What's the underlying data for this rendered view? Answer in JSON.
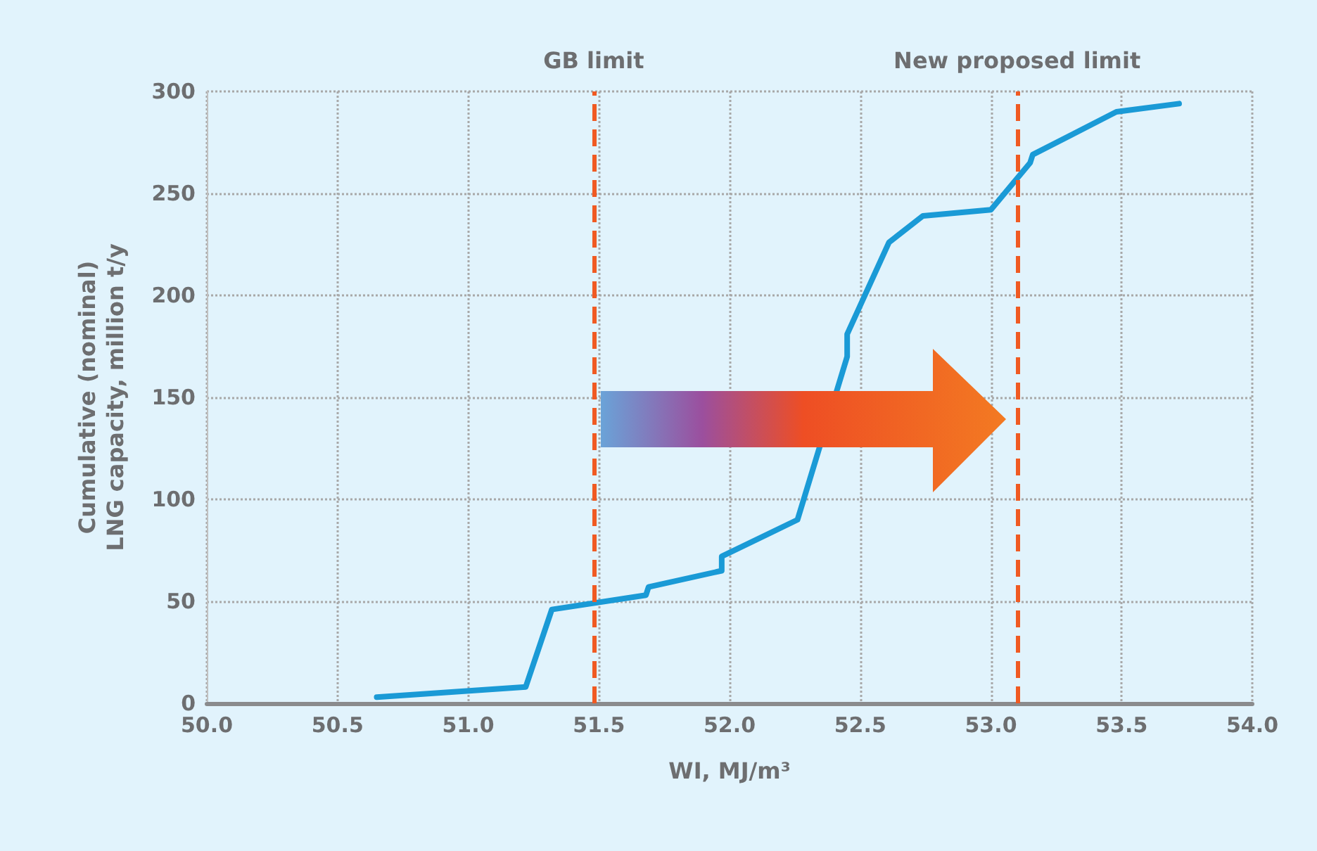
{
  "chart_data": {
    "type": "line",
    "xlabel": "WI, MJ/m³",
    "ylabel": "Cumulative (nominal)\nLNG capacity, million t/y",
    "series": [
      {
        "color": "#1a9ad6",
        "x": [
          50.65,
          51.22,
          51.32,
          51.68,
          51.69,
          51.97,
          51.97,
          52.26,
          52.45,
          52.45,
          52.61,
          52.74,
          53.0,
          53.15,
          53.16,
          53.48,
          53.72
        ],
        "values": [
          3,
          8,
          46,
          53,
          57,
          65,
          72,
          90,
          170,
          181,
          226,
          239,
          242,
          265,
          269,
          290,
          294
        ]
      }
    ],
    "xlim": [
      50,
      54
    ],
    "xticks": [
      {
        "value": 50,
        "label": "50.0"
      },
      {
        "value": 50.5,
        "label": "50.5"
      },
      {
        "value": 51,
        "label": "51.0"
      },
      {
        "value": 51.5,
        "label": "51.5"
      },
      {
        "value": 52,
        "label": "52.0"
      },
      {
        "value": 52.5,
        "label": "52.5"
      },
      {
        "value": 53,
        "label": "53.0"
      },
      {
        "value": 53.5,
        "label": "53.5"
      },
      {
        "value": 54,
        "label": "54.0"
      }
    ],
    "ylim": [
      0,
      300
    ],
    "yticks": [
      0,
      50,
      100,
      150,
      200,
      250,
      300
    ],
    "ref_lines": [
      {
        "axis": "x",
        "value": 51.48,
        "label": "GB limit",
        "color": "#f05a22",
        "line_style": "dashed"
      },
      {
        "axis": "x",
        "value": 53.1,
        "label": "New proposed limit",
        "color": "#f05a22",
        "line_style": "dashed"
      }
    ],
    "grid": true,
    "marker": "none",
    "line_style": "solid"
  }
}
